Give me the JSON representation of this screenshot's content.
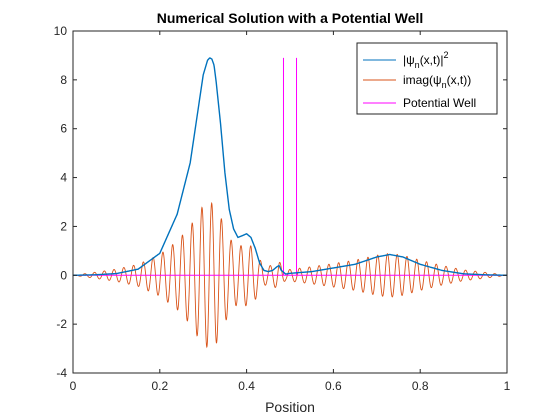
{
  "chart_data": {
    "type": "line",
    "title": "Numerical Solution with a Potential Well",
    "xlabel": "Position",
    "ylabel": "",
    "xlim": [
      0,
      1
    ],
    "ylim": [
      -4,
      10
    ],
    "xticks": [
      "0",
      "0.2",
      "0.4",
      "0.6",
      "0.8",
      "1"
    ],
    "xtick_values": [
      0,
      0.2,
      0.4,
      0.6,
      0.8,
      1
    ],
    "yticks": [
      "-4",
      "-2",
      "0",
      "2",
      "4",
      "6",
      "8",
      "10"
    ],
    "ytick_values": [
      -4,
      -2,
      0,
      2,
      4,
      6,
      8,
      10
    ],
    "grid": false,
    "legend_position": "top-right",
    "series": [
      {
        "name": "|ψn(x,t)|²",
        "legend_main": "|ψ",
        "legend_sub": "n",
        "legend_tail": "(x,t)|",
        "legend_sup": "2",
        "color": "#0072BD",
        "x": [
          0,
          0.05,
          0.1,
          0.15,
          0.2,
          0.24,
          0.27,
          0.29,
          0.3,
          0.31,
          0.315,
          0.32,
          0.325,
          0.33,
          0.34,
          0.35,
          0.36,
          0.37,
          0.38,
          0.39,
          0.4,
          0.41,
          0.42,
          0.43,
          0.44,
          0.45,
          0.46,
          0.47,
          0.475,
          0.48,
          0.49,
          0.5,
          0.55,
          0.6,
          0.65,
          0.7,
          0.73,
          0.76,
          0.8,
          0.85,
          0.9,
          0.95,
          1
        ],
        "y": [
          0.0,
          0.02,
          0.07,
          0.25,
          0.9,
          2.5,
          4.6,
          7.0,
          8.2,
          8.8,
          8.9,
          8.85,
          8.6,
          7.9,
          6.2,
          4.2,
          2.7,
          1.9,
          1.55,
          1.62,
          1.7,
          1.55,
          1.1,
          0.5,
          0.2,
          0.15,
          0.2,
          0.35,
          0.4,
          0.2,
          0.05,
          0.08,
          0.15,
          0.3,
          0.45,
          0.75,
          0.85,
          0.75,
          0.45,
          0.2,
          0.06,
          0.02,
          0.0
        ]
      },
      {
        "name": "imag(ψn(x,t))",
        "legend_main": "imag(ψ",
        "legend_sub": "n",
        "legend_tail": "(x,t))",
        "color": "#D95319",
        "x": [
          0,
          0.05,
          0.1,
          0.15,
          0.2,
          0.24,
          0.27,
          0.29,
          0.3,
          0.31,
          0.315,
          0.32,
          0.325,
          0.33,
          0.34,
          0.35,
          0.36,
          0.37,
          0.38,
          0.39,
          0.4,
          0.41,
          0.42,
          0.43,
          0.44,
          0.45,
          0.46,
          0.47,
          0.475,
          0.48,
          0.49,
          0.5,
          0.55,
          0.6,
          0.65,
          0.7,
          0.73,
          0.76,
          0.8,
          0.85,
          0.9,
          0.95,
          1
        ],
        "envelope": [
          0.0,
          0.12,
          0.25,
          0.45,
          0.85,
          1.4,
          2.0,
          2.6,
          2.85,
          2.95,
          2.95,
          2.95,
          2.9,
          2.8,
          2.4,
          1.95,
          1.55,
          1.3,
          1.2,
          1.22,
          1.25,
          1.2,
          1.0,
          0.65,
          0.42,
          0.38,
          0.42,
          0.55,
          0.58,
          0.42,
          0.2,
          0.24,
          0.35,
          0.48,
          0.62,
          0.82,
          0.9,
          0.82,
          0.62,
          0.4,
          0.22,
          0.12,
          0.0
        ],
        "wavelength": 0.0225
      },
      {
        "name": "Potential Well",
        "legend_main": "Potential Well",
        "color": "#FF00FF",
        "x": [
          0.0,
          0.485,
          0.485,
          0.485,
          0.515,
          0.515,
          0.515,
          1.0
        ],
        "y": [
          0,
          0,
          8.9,
          0,
          0,
          8.9,
          0,
          0
        ]
      }
    ]
  }
}
